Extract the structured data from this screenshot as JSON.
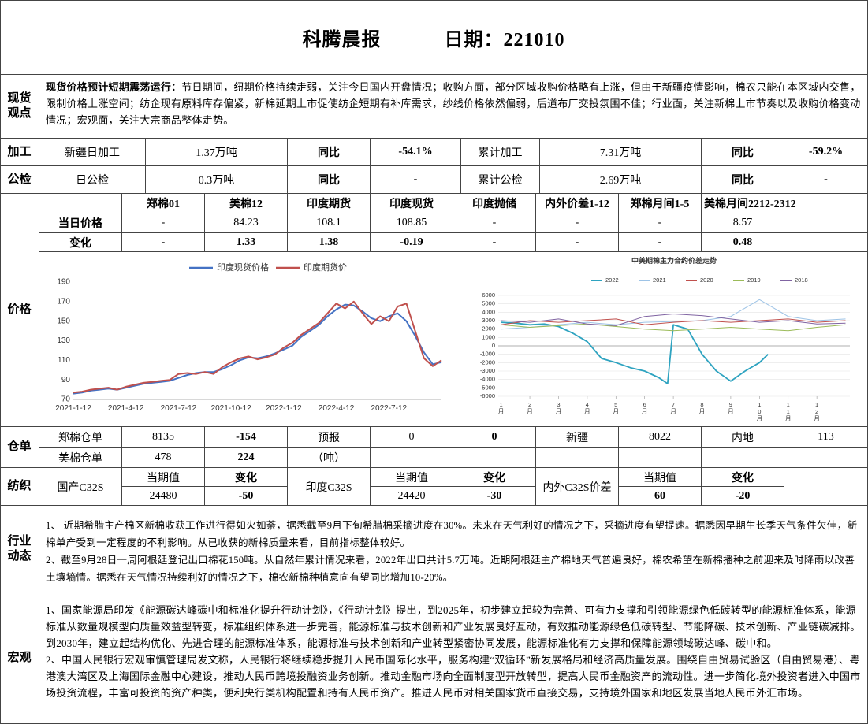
{
  "header": {
    "title": "科腾晨报",
    "date": "日期：221010"
  },
  "spot_view": {
    "label": "现货观点",
    "heading": "现货价格预计短期震荡运行：",
    "text": "节日期间，纽期价格持续走弱，关注今日国内开盘情况；收购方面，部分区域收购价格略有上涨，但由于新疆疫情影响，棉农只能在本区域内交售，限制价格上涨空间；纺企现有原料库存偏紧，新棉延期上市促使纺企短期有补库需求，纱线价格依然偏弱，后道布厂交投氛围不佳；行业面，关注新棉上市节奏以及收购价格变动情况；宏观面，关注大宗商品整体走势。"
  },
  "processing": {
    "label": "加工",
    "cells": [
      "新疆日加工",
      "1.37万吨",
      "同比",
      "-54.1%",
      "累计加工",
      "7.31万吨",
      "同比",
      "-59.2%"
    ]
  },
  "inspection": {
    "label": "公检",
    "cells": [
      "日公检",
      "0.3万吨",
      "同比",
      "-",
      "累计公检",
      "2.69万吨",
      "同比",
      "-"
    ]
  },
  "price": {
    "label": "价格",
    "columns": [
      "郑棉01",
      "美棉12",
      "印度期货",
      "印度现货",
      "印度抛储",
      "内外价差1-12",
      "郑棉月间1-5",
      "美棉月间2212-2312"
    ],
    "rows": [
      {
        "label": "当日价格",
        "values": [
          "-",
          "84.23",
          "108.1",
          "108.85",
          "-",
          "-",
          "-",
          "8.57"
        ]
      },
      {
        "label": "变化",
        "values": [
          "-",
          "1.33",
          "1.38",
          "-0.19",
          "-",
          "-",
          "-",
          "0.48"
        ]
      }
    ],
    "charts": [
      {
        "type": "line",
        "grid": false,
        "categories": [
          "2021-1-12",
          null,
          null,
          null,
          null,
          null,
          "2021-4-12",
          null,
          null,
          null,
          null,
          null,
          "2021-7-12",
          null,
          null,
          null,
          null,
          null,
          "2021-10-12",
          null,
          null,
          null,
          null,
          null,
          "2022-1-12",
          null,
          null,
          null,
          null,
          null,
          "2022-4-12",
          null,
          null,
          null,
          null,
          null,
          "2022-7-12",
          null,
          null,
          null,
          null,
          null,
          null
        ],
        "series": [
          {
            "name": "印度现货价格",
            "color": "#4472c4",
            "values": [
              76,
              77,
              79,
              80,
              81,
              80,
              82,
              84,
              86,
              87,
              88,
              89,
              92,
              95,
              97,
              98,
              98,
              101,
              105,
              110,
              113,
              112,
              114,
              117,
              121,
              125,
              134,
              140,
              146,
              155,
              162,
              167,
              166,
              160,
              153,
              150,
              155,
              158,
              150,
              135,
              118,
              106,
              108
            ]
          },
          {
            "name": "印度期货价",
            "color": "#c0504d",
            "values": [
              77,
              78,
              80,
              81,
              82,
              80,
              83,
              85,
              87,
              88,
              89,
              90,
              96,
              97,
              96,
              98,
              96,
              103,
              108,
              112,
              114,
              111,
              113,
              116,
              123,
              128,
              136,
              142,
              148,
              158,
              168,
              163,
              170,
              158,
              147,
              155,
              150,
              165,
              168,
              140,
              112,
              104,
              110
            ]
          }
        ],
        "ylim": [
          70,
          190
        ],
        "yticks": [
          70,
          90,
          110,
          130,
          150,
          170,
          190
        ]
      },
      {
        "type": "line",
        "grid": true,
        "title": "中美期棉主力合约价差走势",
        "series": [
          {
            "name": "2022",
            "color": "#2ea3c0",
            "x": [
              1,
              1.5,
              2,
              2.5,
              3,
              3.5,
              4,
              4.5,
              5,
              5.5,
              6,
              6.5,
              6.8,
              7,
              7.5,
              8,
              8.5,
              9,
              9.5,
              10,
              10.3
            ],
            "values": [
              2800,
              2700,
              2500,
              2600,
              2300,
              1500,
              500,
              -1500,
              -2000,
              -2600,
              -3000,
              -3800,
              -4500,
              2500,
              2000,
              -1000,
              -3000,
              -4200,
              -3000,
              -2000,
              -1000
            ]
          },
          {
            "name": "2021",
            "color": "#9dc3e6",
            "x": [
              1,
              2,
              3,
              4,
              5,
              6,
              7,
              8,
              9,
              10,
              11,
              12,
              13
            ],
            "values": [
              2000,
              2200,
              2500,
              2800,
              2500,
              2800,
              2900,
              3000,
              3500,
              5500,
              3500,
              3000,
              3200
            ]
          },
          {
            "name": "2020",
            "color": "#c0504d",
            "x": [
              1,
              2,
              3,
              4,
              5,
              6,
              7,
              8,
              9,
              10,
              11,
              12,
              13
            ],
            "values": [
              2500,
              3000,
              2800,
              3000,
              3200,
              2500,
              2800,
              3000,
              2800,
              3000,
              3200,
              2800,
              3000
            ]
          },
          {
            "name": "2019",
            "color": "#9bbb59",
            "x": [
              1,
              2,
              3,
              4,
              5,
              6,
              7,
              8,
              9,
              10,
              11,
              12,
              13
            ],
            "values": [
              2500,
              2200,
              2400,
              2600,
              2300,
              2000,
              1800,
              2000,
              2200,
              2000,
              1800,
              2200,
              2500
            ]
          },
          {
            "name": "2018",
            "color": "#8064a2",
            "x": [
              1,
              2,
              3,
              4,
              5,
              6,
              7,
              8,
              9,
              10,
              11,
              12,
              13
            ],
            "values": [
              3000,
              2800,
              3200,
              2600,
              2400,
              3500,
              3800,
              3600,
              3200,
              2800,
              3000,
              2600,
              2700
            ]
          }
        ],
        "xlim": [
          0.9,
          13.15
        ],
        "xticks": [
          {
            "value": 1,
            "label": "1月"
          },
          {
            "value": 2,
            "label": "2月"
          },
          {
            "value": 3,
            "label": "3月"
          },
          {
            "value": 4,
            "label": "4月"
          },
          {
            "value": 5,
            "label": "5月"
          },
          {
            "value": 6,
            "label": "6月"
          },
          {
            "value": 7,
            "label": "7月"
          },
          {
            "value": 8,
            "label": "8月"
          },
          {
            "value": 9,
            "label": "9月"
          },
          {
            "value": 10,
            "label": "10月"
          },
          {
            "value": 11,
            "label": "11月"
          },
          {
            "value": 12,
            "label": "12月"
          }
        ],
        "ylim": [
          -6000,
          6000
        ],
        "yticks": [
          -6000,
          -5000,
          -4000,
          -3000,
          -2000,
          -1000,
          0,
          1000,
          2000,
          3000,
          4000,
          5000,
          6000
        ]
      }
    ]
  },
  "warehouse": {
    "label": "仓单",
    "rows": [
      [
        "郑棉仓单",
        "8135",
        "-154",
        "预报",
        "0",
        "0",
        "新疆",
        "8022",
        "内地",
        "113"
      ],
      [
        "美棉仓单",
        "478",
        "224",
        "（吨）"
      ]
    ]
  },
  "textile": {
    "label": "纺织",
    "groups": [
      {
        "name": "国产C32S",
        "headers": [
          "当期值",
          "变化"
        ],
        "values": [
          "24480",
          "-50"
        ]
      },
      {
        "name": "印度C32S",
        "headers": [
          "当期值",
          "变化"
        ],
        "values": [
          "24420",
          "-30"
        ]
      },
      {
        "name": "内外C32S价差",
        "headers": [
          "当期值",
          "变化"
        ],
        "values": [
          "60",
          "-20"
        ]
      }
    ]
  },
  "industry": {
    "label": "行业动态",
    "paragraphs": [
      "1、  近期希腊主产棉区新棉收获工作进行得如火如荼，据悉截至9月下旬希腊棉采摘进度在30%。未来在天气利好的情况之下，采摘进度有望提速。据悉因早期生长季天气条件欠佳，新棉单产受到一定程度的不利影响。从已收获的新棉质量来看，目前指标整体较好。",
      "2、截至9月28日一周阿根廷登记出口棉花150吨。从自然年累计情况来看，2022年出口共计5.7万吨。近期阿根廷主产棉地天气普遍良好，棉农希望在新棉播种之前迎来及时降雨以改善土壤墒情。据悉在天气情况持续利好的情况之下，棉农新棉种植意向有望同比增加10-20%。"
    ]
  },
  "macro": {
    "label": "宏观",
    "paragraphs": [
      "1、国家能源局印发《能源碳达峰碳中和标准化提升行动计划》，《行动计划》提出，到2025年，初步建立起较为完善、可有力支撑和引领能源绿色低碳转型的能源标准体系，能源标准从数量规模型向质量效益型转变，标准组织体系进一步完善，能源标准与技术创新和产业发展良好互动，有效推动能源绿色低碳转型、节能降碳、技术创新、产业链碳减排。到2030年，建立起结构优化、先进合理的能源标准体系，能源标准与技术创新和产业转型紧密协同发展，能源标准化有力支撑和保障能源领域碳达峰、碳中和。",
      "2、中国人民银行宏观审慎管理局发文称，人民银行将继续稳步提升人民币国际化水平，服务构建“双循环”新发展格局和经济高质量发展。围绕自由贸易试验区（自由贸易港）、粤港澳大湾区及上海国际金融中心建设，推动人民币跨境投融资业务创新。推动金融市场向全面制度型开放转型，提高人民币金融资产的流动性。进一步简化境外投资者进入中国市场投资流程，丰富可投资的资产种类，便利央行类机构配置和持有人民币资产。推进人民币对相关国家货币直接交易，支持境外国家和地区发展当地人民币外汇市场。"
    ]
  }
}
